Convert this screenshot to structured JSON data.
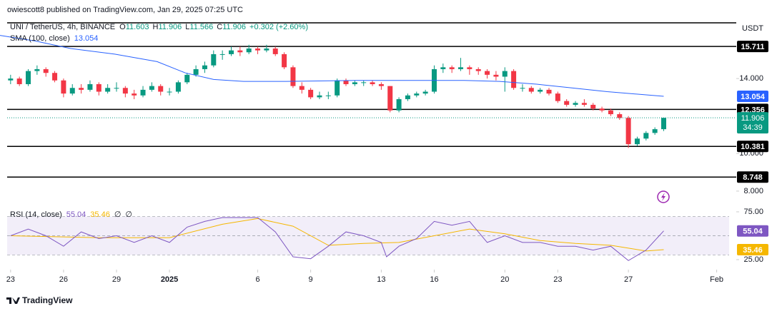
{
  "header": {
    "text": "owiescott8 published on TradingView.com, Jan 29, 2025 07:25 UTC",
    "currency": "USDT",
    "footer": "TradingView"
  },
  "chart_data": {
    "type": "candlestick",
    "title": "UNI / TetherUS, 4h, BINANCE",
    "ohlc_legend": [
      {
        "label": "O",
        "value": 11.603
      },
      {
        "label": "H",
        "value": 11.906
      },
      {
        "label": "L",
        "value": 11.566
      },
      {
        "label": "C",
        "value": 11.906
      }
    ],
    "change": "+0.302 (+2.60%)",
    "up_color": "#089981",
    "down_color": "#f23645",
    "xlim": [
      -0.6,
      40.3
    ],
    "xticks": [
      {
        "value": 0,
        "label": "23"
      },
      {
        "value": 3,
        "label": "26"
      },
      {
        "value": 6,
        "label": "29"
      },
      {
        "value": 9,
        "label": "2025"
      },
      {
        "value": 14,
        "label": "6"
      },
      {
        "value": 17,
        "label": "9"
      },
      {
        "value": 21,
        "label": "13"
      },
      {
        "value": 24,
        "label": "16"
      },
      {
        "value": 28,
        "label": "20"
      },
      {
        "value": 31,
        "label": "23"
      },
      {
        "value": 35,
        "label": "27"
      },
      {
        "value": 40,
        "label": "Feb"
      }
    ],
    "ylim": [
      7.35,
      16.97
    ],
    "yticks": [
      {
        "value": 14,
        "label": "14.000"
      },
      {
        "value": 10,
        "label": "10.000"
      },
      {
        "value": 8,
        "label": "8.000"
      }
    ],
    "levels": [
      15.711,
      12.356,
      10.381,
      8.748
    ],
    "countdown": "34:39",
    "x": [
      0,
      0.5,
      1,
      1.5,
      2,
      2.5,
      3,
      3.5,
      4,
      4.5,
      5,
      5.5,
      6,
      6.5,
      7,
      7.5,
      8,
      8.5,
      9,
      9.5,
      10,
      10.5,
      11,
      11.5,
      12,
      12.5,
      13,
      13.5,
      14,
      14.5,
      15,
      15.5,
      16,
      16.5,
      17,
      17.5,
      18,
      18.5,
      19,
      19.5,
      20,
      20.5,
      21,
      21.5,
      22,
      22.5,
      23,
      23.5,
      24,
      24.5,
      25,
      25.5,
      26,
      26.5,
      27,
      27.5,
      28,
      28.5,
      29,
      29.5,
      30,
      30.5,
      31,
      31.5,
      32,
      32.5,
      33,
      33.5,
      34,
      34.5,
      35,
      35.5,
      36,
      36.5,
      37
    ],
    "candles": [
      [
        13.9,
        14.2,
        13.7,
        14.0
      ],
      [
        14.0,
        14.1,
        13.6,
        13.7
      ],
      [
        13.7,
        14.5,
        13.6,
        14.4
      ],
      [
        14.4,
        14.7,
        14.2,
        14.5
      ],
      [
        14.5,
        14.6,
        14.1,
        14.3
      ],
      [
        14.3,
        14.4,
        13.8,
        13.9
      ],
      [
        13.9,
        14.0,
        13.0,
        13.2
      ],
      [
        13.2,
        13.7,
        13.1,
        13.5
      ],
      [
        13.5,
        13.7,
        13.2,
        13.4
      ],
      [
        13.4,
        13.9,
        13.3,
        13.7
      ],
      [
        13.7,
        13.8,
        13.1,
        13.3
      ],
      [
        13.3,
        13.7,
        13.2,
        13.5
      ],
      [
        13.5,
        13.8,
        13.3,
        13.5
      ],
      [
        13.5,
        13.6,
        13.0,
        13.2
      ],
      [
        13.2,
        13.4,
        12.9,
        13.1
      ],
      [
        13.1,
        13.6,
        13.0,
        13.4
      ],
      [
        13.4,
        13.8,
        13.3,
        13.6
      ],
      [
        13.6,
        13.7,
        13.1,
        13.3
      ],
      [
        13.3,
        13.5,
        13.1,
        13.3
      ],
      [
        13.3,
        13.9,
        13.2,
        13.8
      ],
      [
        13.8,
        14.3,
        13.7,
        14.2
      ],
      [
        14.2,
        14.7,
        14.1,
        14.5
      ],
      [
        14.5,
        14.9,
        14.3,
        14.7
      ],
      [
        14.7,
        15.5,
        14.6,
        15.3
      ],
      [
        15.3,
        15.5,
        15.0,
        15.3
      ],
      [
        15.3,
        15.7,
        15.2,
        15.5
      ],
      [
        15.5,
        15.7,
        15.2,
        15.4
      ],
      [
        15.4,
        15.8,
        15.3,
        15.6
      ],
      [
        15.6,
        15.7,
        15.3,
        15.5
      ],
      [
        15.5,
        15.8,
        15.4,
        15.6
      ],
      [
        15.6,
        15.7,
        15.2,
        15.3
      ],
      [
        15.3,
        15.4,
        14.5,
        14.6
      ],
      [
        14.6,
        14.7,
        13.5,
        13.6
      ],
      [
        13.6,
        13.8,
        13.2,
        13.4
      ],
      [
        13.4,
        13.5,
        12.9,
        13.0
      ],
      [
        13.0,
        13.3,
        12.9,
        13.1
      ],
      [
        13.1,
        13.3,
        12.9,
        13.1
      ],
      [
        13.1,
        14.0,
        13.0,
        13.9
      ],
      [
        13.9,
        14.0,
        13.6,
        13.7
      ],
      [
        13.7,
        13.9,
        13.6,
        13.8
      ],
      [
        13.8,
        13.9,
        13.6,
        13.8
      ],
      [
        13.8,
        13.9,
        13.6,
        13.7
      ],
      [
        13.7,
        13.8,
        13.4,
        13.6
      ],
      [
        13.6,
        13.6,
        12.2,
        12.3
      ],
      [
        12.3,
        13.0,
        12.2,
        12.9
      ],
      [
        12.9,
        13.2,
        12.8,
        13.1
      ],
      [
        13.1,
        13.3,
        13.0,
        13.2
      ],
      [
        13.2,
        13.4,
        13.1,
        13.3
      ],
      [
        13.3,
        14.7,
        13.2,
        14.5
      ],
      [
        14.5,
        14.8,
        14.3,
        14.6
      ],
      [
        14.6,
        14.7,
        14.3,
        14.5
      ],
      [
        14.5,
        15.1,
        14.4,
        14.6
      ],
      [
        14.6,
        14.7,
        14.2,
        14.5
      ],
      [
        14.5,
        14.6,
        14.2,
        14.4
      ],
      [
        14.4,
        14.5,
        14.0,
        14.2
      ],
      [
        14.2,
        14.4,
        13.9,
        14.1
      ],
      [
        14.1,
        14.6,
        13.3,
        14.4
      ],
      [
        14.4,
        14.5,
        13.4,
        13.5
      ],
      [
        13.5,
        13.7,
        13.3,
        13.5
      ],
      [
        13.5,
        13.6,
        13.2,
        13.3
      ],
      [
        13.3,
        13.5,
        13.2,
        13.4
      ],
      [
        13.4,
        13.5,
        13.1,
        13.2
      ],
      [
        13.2,
        13.3,
        12.7,
        12.8
      ],
      [
        12.8,
        12.9,
        12.5,
        12.6
      ],
      [
        12.6,
        12.8,
        12.5,
        12.7
      ],
      [
        12.7,
        12.9,
        12.5,
        12.6
      ],
      [
        12.6,
        12.7,
        12.3,
        12.4
      ],
      [
        12.4,
        12.5,
        12.2,
        12.3
      ],
      [
        12.3,
        12.4,
        12.0,
        12.1
      ],
      [
        12.1,
        12.2,
        11.8,
        11.9
      ],
      [
        11.9,
        12.0,
        10.3,
        10.5
      ],
      [
        10.5,
        10.9,
        10.4,
        10.8
      ],
      [
        10.8,
        11.2,
        10.7,
        11.1
      ],
      [
        11.1,
        11.4,
        11.0,
        11.3
      ],
      [
        11.3,
        11.906,
        11.2,
        11.906
      ]
    ],
    "sma": {
      "name": "SMA (100, close)",
      "color": "#2962ff",
      "x": [
        -0.6,
        1.4,
        3.4,
        5.9,
        8.3,
        9.9,
        11.5,
        13.2,
        15.6,
        19.6,
        23.7,
        25.7,
        27.7,
        29.8,
        31.8,
        33.8,
        37
      ],
      "values": [
        16.3,
        16.0,
        15.6,
        15.3,
        14.9,
        14.3,
        13.95,
        13.85,
        13.85,
        13.9,
        13.9,
        13.9,
        13.85,
        13.7,
        13.5,
        13.3,
        13.054
      ]
    },
    "rsi": {
      "name": "RSI (14, close)",
      "ylim": [
        16.8,
        80.2
      ],
      "yticks": [
        {
          "value": 75,
          "label": "75.00"
        },
        {
          "value": 25,
          "label": "25.00"
        }
      ],
      "levels": [
        70,
        50,
        30
      ],
      "extras": [
        "∅",
        "∅"
      ],
      "line": {
        "color": "#7e57c2",
        "x": [
          0,
          1,
          2,
          3,
          4,
          5,
          6,
          7,
          8,
          9,
          10,
          11,
          12,
          13,
          14,
          15,
          16,
          17,
          18,
          19,
          20,
          21,
          21.3,
          22,
          23,
          24,
          25,
          26,
          27,
          28,
          29,
          30,
          31,
          32,
          33,
          34,
          35,
          36,
          37
        ],
        "values": [
          50,
          57,
          50,
          39,
          54,
          47,
          50,
          43,
          50,
          43,
          59,
          65,
          69,
          69,
          69,
          54,
          28,
          26,
          39,
          54,
          50,
          43,
          28,
          39,
          47,
          65,
          61,
          65,
          43,
          50,
          43,
          43,
          39,
          39,
          35,
          39,
          24,
          35,
          55.04
        ]
      },
      "ma": {
        "color": "#f5b700",
        "x": [
          0,
          5,
          9,
          12,
          14,
          16,
          18,
          20,
          22,
          24,
          26,
          28,
          30,
          32,
          34,
          36,
          37
        ],
        "values": [
          50,
          48,
          48,
          62,
          68,
          60,
          40,
          42,
          43,
          50,
          57,
          52,
          45,
          42,
          40,
          34,
          35.46
        ]
      }
    }
  }
}
